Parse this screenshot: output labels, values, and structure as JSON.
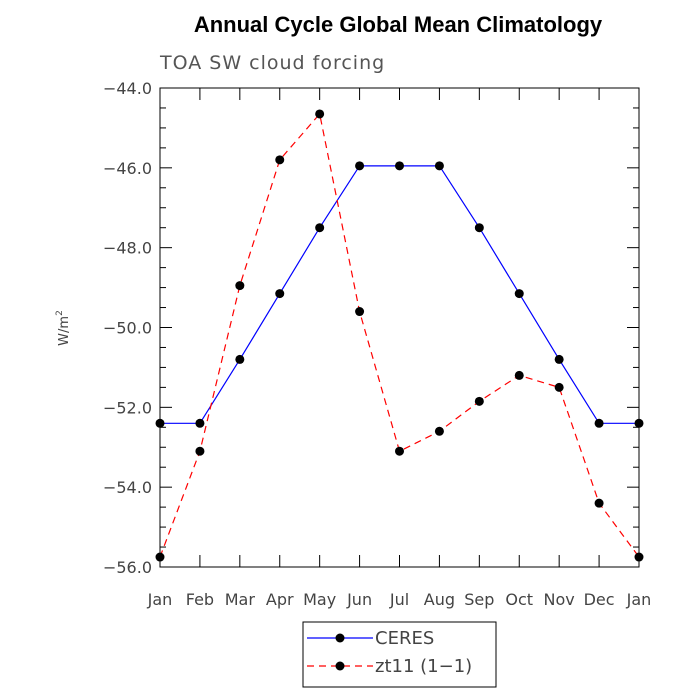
{
  "colors": {
    "ceres": "#0000ff",
    "zt11": "#ff0000",
    "marker": "#000000",
    "axis": "#000000"
  },
  "chart_data": {
    "type": "line",
    "title": "Annual Cycle Global Mean Climatology",
    "subtitle": "TOA SW cloud forcing",
    "xlabel": "",
    "ylabel": "W/m",
    "ylabel_sup": "2",
    "categories": [
      "Jan",
      "Feb",
      "Mar",
      "Apr",
      "May",
      "Jun",
      "Jul",
      "Aug",
      "Sep",
      "Oct",
      "Nov",
      "Dec",
      "Jan"
    ],
    "ylim": [
      -56.0,
      -44.0
    ],
    "yticks": [
      -56.0,
      -54.0,
      -52.0,
      -50.0,
      -48.0,
      -46.0,
      -44.0
    ],
    "ytick_labels": [
      "−56.0",
      "−54.0",
      "−52.0",
      "−50.0",
      "−48.0",
      "−46.0",
      "−44.0"
    ],
    "grid": false,
    "legend_position": "bottom-center",
    "series": [
      {
        "name": "CERES",
        "line_style": "solid",
        "color_key": "ceres",
        "values": [
          -52.4,
          -52.4,
          -50.8,
          -49.15,
          -47.5,
          -45.95,
          -45.95,
          -45.95,
          -47.5,
          -49.15,
          -50.8,
          -52.4,
          -52.4
        ]
      },
      {
        "name": "zt11 (1−1)",
        "line_style": "dashed",
        "color_key": "zt11",
        "values": [
          -55.75,
          -53.1,
          -48.95,
          -45.8,
          -44.65,
          -49.6,
          -53.1,
          -52.6,
          -51.85,
          -51.2,
          -51.5,
          -54.4,
          -55.75
        ]
      }
    ]
  }
}
